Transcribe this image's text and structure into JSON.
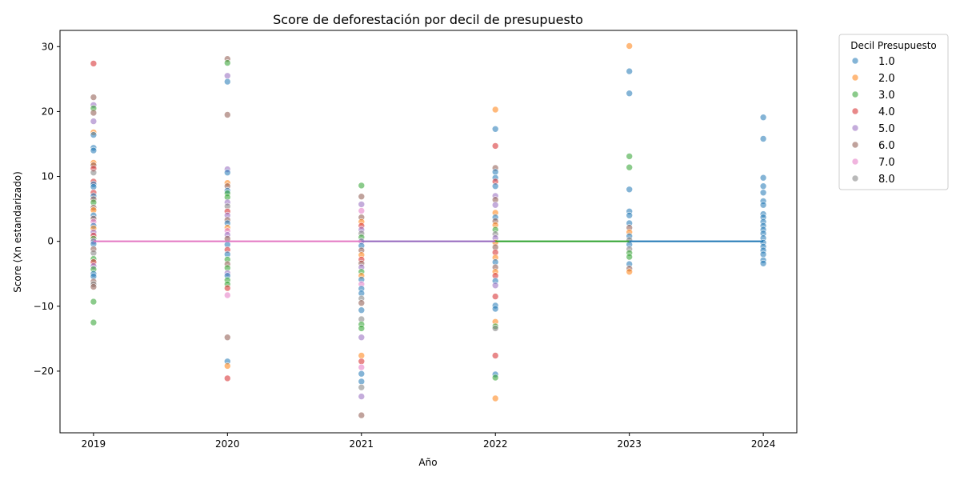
{
  "chart_data": {
    "type": "scatter",
    "title": "Score de deforestación por decil de presupuesto",
    "xlabel": "Año",
    "ylabel": "Score (Xn estandarizado)",
    "x_ticks": [
      "2019",
      "2020",
      "2021",
      "2022",
      "2023",
      "2024"
    ],
    "y_ticks": [
      30,
      20,
      10,
      0,
      -10,
      -20
    ],
    "y_tick_labels": [
      "30",
      "20",
      "10",
      "0",
      "−10",
      "−20"
    ],
    "xlim": [
      2018.75,
      2024.25
    ],
    "ylim": [
      -29.5,
      32.5
    ],
    "grid": false,
    "legend": {
      "title": "Decil Presupuesto",
      "placement": "outside-top-right",
      "entries": [
        "1.0",
        "2.0",
        "3.0",
        "4.0",
        "5.0",
        "6.0",
        "7.0",
        "8.0"
      ]
    },
    "palette": {
      "d1": "#1f77b4",
      "d2": "#ff7f0e",
      "d3": "#2ca02c",
      "d4": "#d62728",
      "d5": "#9467bd",
      "d6": "#8c564b",
      "d7": "#e377c2",
      "d8": "#7f7f7f"
    },
    "trend_lines": [
      {
        "x": [
          2019,
          2020
        ],
        "y": [
          0,
          0
        ],
        "color": "#e377c2"
      },
      {
        "x": [
          2020,
          2021
        ],
        "y": [
          0,
          0
        ],
        "color": "#e377c2"
      },
      {
        "x": [
          2021,
          2022
        ],
        "y": [
          0,
          0
        ],
        "color": "#9467bd"
      },
      {
        "x": [
          2022,
          2023
        ],
        "y": [
          0,
          0
        ],
        "color": "#2ca02c"
      },
      {
        "x": [
          2023,
          2024
        ],
        "y": [
          0,
          0
        ],
        "color": "#1f77b4"
      }
    ],
    "points": [
      {
        "x": 2019,
        "y": 27.4,
        "d": 4
      },
      {
        "x": 2019,
        "y": 22.2,
        "d": 6
      },
      {
        "x": 2019,
        "y": 21.0,
        "d": 5
      },
      {
        "x": 2019,
        "y": 20.5,
        "d": 3
      },
      {
        "x": 2019,
        "y": 19.8,
        "d": 6
      },
      {
        "x": 2019,
        "y": 18.5,
        "d": 5
      },
      {
        "x": 2019,
        "y": 16.8,
        "d": 2
      },
      {
        "x": 2019,
        "y": 16.4,
        "d": 1
      },
      {
        "x": 2019,
        "y": 14.4,
        "d": 1
      },
      {
        "x": 2019,
        "y": 14.0,
        "d": 1
      },
      {
        "x": 2019,
        "y": 12.1,
        "d": 2
      },
      {
        "x": 2019,
        "y": 11.7,
        "d": 6
      },
      {
        "x": 2019,
        "y": 11.2,
        "d": 4
      },
      {
        "x": 2019,
        "y": 10.6,
        "d": 8
      },
      {
        "x": 2019,
        "y": 9.2,
        "d": 4
      },
      {
        "x": 2019,
        "y": 8.8,
        "d": 1
      },
      {
        "x": 2019,
        "y": 8.4,
        "d": 1
      },
      {
        "x": 2019,
        "y": 7.5,
        "d": 4
      },
      {
        "x": 2019,
        "y": 7.0,
        "d": 1
      },
      {
        "x": 2019,
        "y": 6.5,
        "d": 6
      },
      {
        "x": 2019,
        "y": 6.0,
        "d": 3
      },
      {
        "x": 2019,
        "y": 5.2,
        "d": 6
      },
      {
        "x": 2019,
        "y": 4.8,
        "d": 2
      },
      {
        "x": 2019,
        "y": 4.0,
        "d": 1
      },
      {
        "x": 2019,
        "y": 3.5,
        "d": 6
      },
      {
        "x": 2019,
        "y": 3.0,
        "d": 7
      },
      {
        "x": 2019,
        "y": 2.4,
        "d": 1
      },
      {
        "x": 2019,
        "y": 2.0,
        "d": 2
      },
      {
        "x": 2019,
        "y": 1.4,
        "d": 5
      },
      {
        "x": 2019,
        "y": 0.9,
        "d": 4
      },
      {
        "x": 2019,
        "y": 0.4,
        "d": 3
      },
      {
        "x": 2019,
        "y": 0.0,
        "d": 5
      },
      {
        "x": 2019,
        "y": -0.4,
        "d": 1
      },
      {
        "x": 2019,
        "y": -1.2,
        "d": 6
      },
      {
        "x": 2019,
        "y": -1.8,
        "d": 8
      },
      {
        "x": 2019,
        "y": -2.7,
        "d": 3
      },
      {
        "x": 2019,
        "y": -3.2,
        "d": 4
      },
      {
        "x": 2019,
        "y": -3.8,
        "d": 5
      },
      {
        "x": 2019,
        "y": -4.3,
        "d": 3
      },
      {
        "x": 2019,
        "y": -5.0,
        "d": 1
      },
      {
        "x": 2019,
        "y": -5.4,
        "d": 1
      },
      {
        "x": 2019,
        "y": -6.2,
        "d": 6
      },
      {
        "x": 2019,
        "y": -6.6,
        "d": 8
      },
      {
        "x": 2019,
        "y": -7.0,
        "d": 6
      },
      {
        "x": 2019,
        "y": -9.3,
        "d": 3
      },
      {
        "x": 2019,
        "y": -12.5,
        "d": 3
      },
      {
        "x": 2020,
        "y": 28.1,
        "d": 6
      },
      {
        "x": 2020,
        "y": 27.5,
        "d": 3
      },
      {
        "x": 2020,
        "y": 25.5,
        "d": 5
      },
      {
        "x": 2020,
        "y": 24.6,
        "d": 1
      },
      {
        "x": 2020,
        "y": 19.5,
        "d": 6
      },
      {
        "x": 2020,
        "y": 11.1,
        "d": 5
      },
      {
        "x": 2020,
        "y": 10.6,
        "d": 1
      },
      {
        "x": 2020,
        "y": 9.0,
        "d": 2
      },
      {
        "x": 2020,
        "y": 8.5,
        "d": 6
      },
      {
        "x": 2020,
        "y": 7.8,
        "d": 1
      },
      {
        "x": 2020,
        "y": 7.4,
        "d": 3
      },
      {
        "x": 2020,
        "y": 6.8,
        "d": 3
      },
      {
        "x": 2020,
        "y": 6.0,
        "d": 5
      },
      {
        "x": 2020,
        "y": 5.4,
        "d": 8
      },
      {
        "x": 2020,
        "y": 4.6,
        "d": 4
      },
      {
        "x": 2020,
        "y": 4.0,
        "d": 5
      },
      {
        "x": 2020,
        "y": 3.3,
        "d": 6
      },
      {
        "x": 2020,
        "y": 2.8,
        "d": 1
      },
      {
        "x": 2020,
        "y": 2.1,
        "d": 2
      },
      {
        "x": 2020,
        "y": 1.6,
        "d": 7
      },
      {
        "x": 2020,
        "y": 1.0,
        "d": 5
      },
      {
        "x": 2020,
        "y": 0.4,
        "d": 6
      },
      {
        "x": 2020,
        "y": -0.5,
        "d": 1
      },
      {
        "x": 2020,
        "y": -1.3,
        "d": 4
      },
      {
        "x": 2020,
        "y": -2.0,
        "d": 1
      },
      {
        "x": 2020,
        "y": -2.8,
        "d": 3
      },
      {
        "x": 2020,
        "y": -3.5,
        "d": 6
      },
      {
        "x": 2020,
        "y": -4.1,
        "d": 3
      },
      {
        "x": 2020,
        "y": -4.9,
        "d": 5
      },
      {
        "x": 2020,
        "y": -5.3,
        "d": 1
      },
      {
        "x": 2020,
        "y": -6.0,
        "d": 3
      },
      {
        "x": 2020,
        "y": -6.6,
        "d": 3
      },
      {
        "x": 2020,
        "y": -7.2,
        "d": 4
      },
      {
        "x": 2020,
        "y": -8.3,
        "d": 7
      },
      {
        "x": 2020,
        "y": -14.8,
        "d": 6
      },
      {
        "x": 2020,
        "y": -18.5,
        "d": 1
      },
      {
        "x": 2020,
        "y": -19.2,
        "d": 2
      },
      {
        "x": 2020,
        "y": -21.1,
        "d": 4
      },
      {
        "x": 2021,
        "y": 8.6,
        "d": 3
      },
      {
        "x": 2021,
        "y": 6.9,
        "d": 6
      },
      {
        "x": 2021,
        "y": 5.7,
        "d": 5
      },
      {
        "x": 2021,
        "y": 4.7,
        "d": 7
      },
      {
        "x": 2021,
        "y": 3.7,
        "d": 6
      },
      {
        "x": 2021,
        "y": 3.0,
        "d": 2
      },
      {
        "x": 2021,
        "y": 2.4,
        "d": 4
      },
      {
        "x": 2021,
        "y": 1.8,
        "d": 5
      },
      {
        "x": 2021,
        "y": 1.2,
        "d": 8
      },
      {
        "x": 2021,
        "y": 0.6,
        "d": 3
      },
      {
        "x": 2021,
        "y": 0.0,
        "d": 5
      },
      {
        "x": 2021,
        "y": -0.7,
        "d": 1
      },
      {
        "x": 2021,
        "y": -1.4,
        "d": 6
      },
      {
        "x": 2021,
        "y": -2.1,
        "d": 2
      },
      {
        "x": 2021,
        "y": -2.8,
        "d": 4
      },
      {
        "x": 2021,
        "y": -3.4,
        "d": 6
      },
      {
        "x": 2021,
        "y": -4.0,
        "d": 5
      },
      {
        "x": 2021,
        "y": -4.7,
        "d": 3
      },
      {
        "x": 2021,
        "y": -5.3,
        "d": 2
      },
      {
        "x": 2021,
        "y": -5.9,
        "d": 1
      },
      {
        "x": 2021,
        "y": -6.6,
        "d": 7
      },
      {
        "x": 2021,
        "y": -7.3,
        "d": 1
      },
      {
        "x": 2021,
        "y": -8.0,
        "d": 1
      },
      {
        "x": 2021,
        "y": -8.8,
        "d": 8
      },
      {
        "x": 2021,
        "y": -9.5,
        "d": 6
      },
      {
        "x": 2021,
        "y": -10.6,
        "d": 1
      },
      {
        "x": 2021,
        "y": -12.0,
        "d": 8
      },
      {
        "x": 2021,
        "y": -12.8,
        "d": 3
      },
      {
        "x": 2021,
        "y": -13.4,
        "d": 3
      },
      {
        "x": 2021,
        "y": -14.8,
        "d": 5
      },
      {
        "x": 2021,
        "y": -17.6,
        "d": 2
      },
      {
        "x": 2021,
        "y": -18.5,
        "d": 4
      },
      {
        "x": 2021,
        "y": -19.4,
        "d": 7
      },
      {
        "x": 2021,
        "y": -20.4,
        "d": 1
      },
      {
        "x": 2021,
        "y": -21.6,
        "d": 1
      },
      {
        "x": 2021,
        "y": -22.5,
        "d": 8
      },
      {
        "x": 2021,
        "y": -23.9,
        "d": 5
      },
      {
        "x": 2021,
        "y": -26.8,
        "d": 6
      },
      {
        "x": 2022,
        "y": 20.3,
        "d": 2
      },
      {
        "x": 2022,
        "y": 17.3,
        "d": 1
      },
      {
        "x": 2022,
        "y": 14.7,
        "d": 4
      },
      {
        "x": 2022,
        "y": 11.3,
        "d": 6
      },
      {
        "x": 2022,
        "y": 10.7,
        "d": 1
      },
      {
        "x": 2022,
        "y": 9.8,
        "d": 1
      },
      {
        "x": 2022,
        "y": 9.2,
        "d": 4
      },
      {
        "x": 2022,
        "y": 8.5,
        "d": 1
      },
      {
        "x": 2022,
        "y": 7.0,
        "d": 5
      },
      {
        "x": 2022,
        "y": 6.4,
        "d": 6
      },
      {
        "x": 2022,
        "y": 5.6,
        "d": 5
      },
      {
        "x": 2022,
        "y": 4.4,
        "d": 2
      },
      {
        "x": 2022,
        "y": 3.7,
        "d": 1
      },
      {
        "x": 2022,
        "y": 3.1,
        "d": 6
      },
      {
        "x": 2022,
        "y": 2.5,
        "d": 2
      },
      {
        "x": 2022,
        "y": 1.8,
        "d": 3
      },
      {
        "x": 2022,
        "y": 1.1,
        "d": 8
      },
      {
        "x": 2022,
        "y": 0.5,
        "d": 5
      },
      {
        "x": 2022,
        "y": -0.2,
        "d": 2
      },
      {
        "x": 2022,
        "y": -0.9,
        "d": 6
      },
      {
        "x": 2022,
        "y": -1.7,
        "d": 4
      },
      {
        "x": 2022,
        "y": -2.5,
        "d": 2
      },
      {
        "x": 2022,
        "y": -3.2,
        "d": 1
      },
      {
        "x": 2022,
        "y": -4.0,
        "d": 6
      },
      {
        "x": 2022,
        "y": -4.7,
        "d": 2
      },
      {
        "x": 2022,
        "y": -5.3,
        "d": 4
      },
      {
        "x": 2022,
        "y": -6.1,
        "d": 1
      },
      {
        "x": 2022,
        "y": -6.8,
        "d": 5
      },
      {
        "x": 2022,
        "y": -8.5,
        "d": 4
      },
      {
        "x": 2022,
        "y": -9.9,
        "d": 1
      },
      {
        "x": 2022,
        "y": -10.4,
        "d": 1
      },
      {
        "x": 2022,
        "y": -12.4,
        "d": 2
      },
      {
        "x": 2022,
        "y": -13.1,
        "d": 3
      },
      {
        "x": 2022,
        "y": -13.4,
        "d": 8
      },
      {
        "x": 2022,
        "y": -17.6,
        "d": 4
      },
      {
        "x": 2022,
        "y": -20.5,
        "d": 1
      },
      {
        "x": 2022,
        "y": -21.0,
        "d": 3
      },
      {
        "x": 2022,
        "y": -24.2,
        "d": 2
      },
      {
        "x": 2023,
        "y": 30.1,
        "d": 2
      },
      {
        "x": 2023,
        "y": 26.2,
        "d": 1
      },
      {
        "x": 2023,
        "y": 22.8,
        "d": 1
      },
      {
        "x": 2023,
        "y": 13.1,
        "d": 3
      },
      {
        "x": 2023,
        "y": 11.4,
        "d": 3
      },
      {
        "x": 2023,
        "y": 8.0,
        "d": 1
      },
      {
        "x": 2023,
        "y": 4.6,
        "d": 1
      },
      {
        "x": 2023,
        "y": 4.0,
        "d": 1
      },
      {
        "x": 2023,
        "y": 2.8,
        "d": 1
      },
      {
        "x": 2023,
        "y": 2.1,
        "d": 6
      },
      {
        "x": 2023,
        "y": 1.4,
        "d": 2
      },
      {
        "x": 2023,
        "y": 0.8,
        "d": 1
      },
      {
        "x": 2023,
        "y": 0.2,
        "d": 8
      },
      {
        "x": 2023,
        "y": -0.5,
        "d": 1
      },
      {
        "x": 2023,
        "y": -1.2,
        "d": 8
      },
      {
        "x": 2023,
        "y": -1.8,
        "d": 3
      },
      {
        "x": 2023,
        "y": -2.4,
        "d": 3
      },
      {
        "x": 2023,
        "y": -3.5,
        "d": 1
      },
      {
        "x": 2023,
        "y": -4.2,
        "d": 6
      },
      {
        "x": 2023,
        "y": -4.7,
        "d": 2
      },
      {
        "x": 2024,
        "y": 19.1,
        "d": 1
      },
      {
        "x": 2024,
        "y": 15.8,
        "d": 1
      },
      {
        "x": 2024,
        "y": 9.8,
        "d": 1
      },
      {
        "x": 2024,
        "y": 8.5,
        "d": 1
      },
      {
        "x": 2024,
        "y": 7.5,
        "d": 1
      },
      {
        "x": 2024,
        "y": 6.2,
        "d": 1
      },
      {
        "x": 2024,
        "y": 5.6,
        "d": 1
      },
      {
        "x": 2024,
        "y": 4.2,
        "d": 1
      },
      {
        "x": 2024,
        "y": 3.7,
        "d": 1
      },
      {
        "x": 2024,
        "y": 3.0,
        "d": 1
      },
      {
        "x": 2024,
        "y": 2.4,
        "d": 1
      },
      {
        "x": 2024,
        "y": 1.8,
        "d": 1
      },
      {
        "x": 2024,
        "y": 1.2,
        "d": 1
      },
      {
        "x": 2024,
        "y": 0.5,
        "d": 1
      },
      {
        "x": 2024,
        "y": -0.2,
        "d": 1
      },
      {
        "x": 2024,
        "y": -0.8,
        "d": 1
      },
      {
        "x": 2024,
        "y": -1.4,
        "d": 1
      },
      {
        "x": 2024,
        "y": -2.0,
        "d": 1
      },
      {
        "x": 2024,
        "y": -2.9,
        "d": 1
      },
      {
        "x": 2024,
        "y": -3.4,
        "d": 1
      }
    ]
  }
}
